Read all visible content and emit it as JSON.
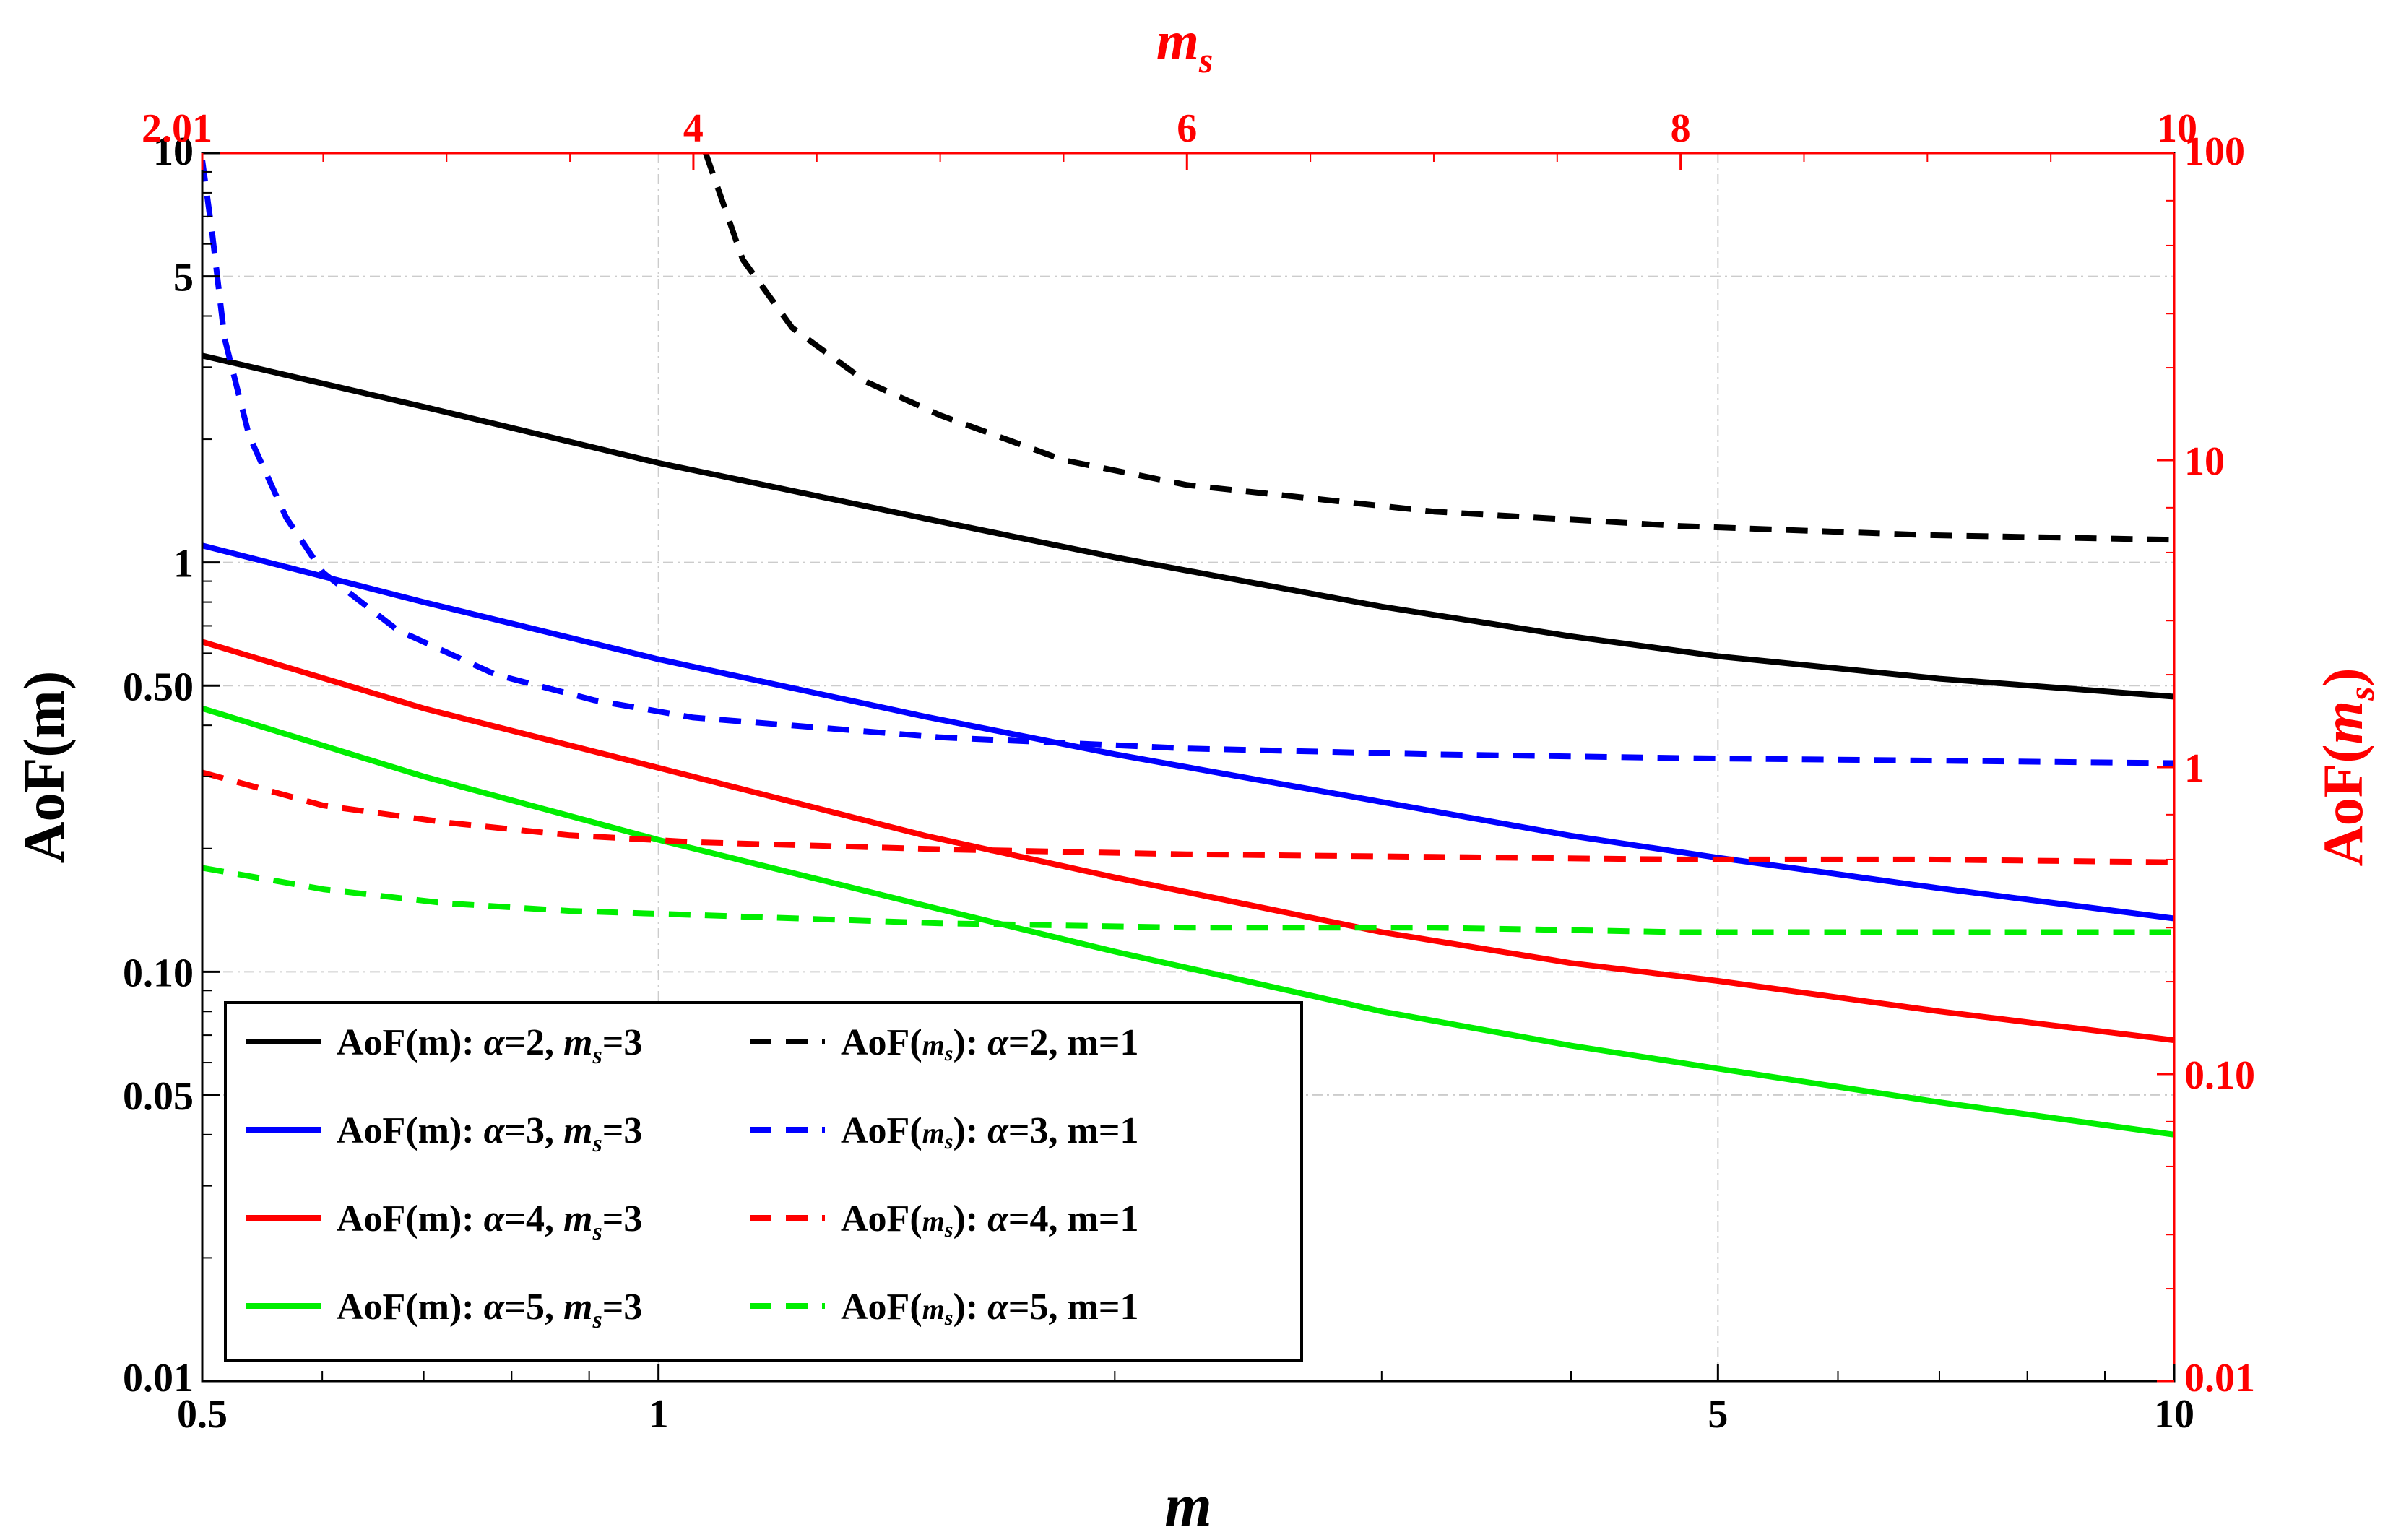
{
  "chart_data": {
    "type": "line",
    "colors": {
      "black": "#000000",
      "blue": "#0000ff",
      "red": "#ff0000",
      "green": "#00ee00",
      "grid": "#cccccc",
      "secondary_axis": "#ff0000"
    },
    "axes": {
      "bottom": {
        "title": "m",
        "scale": "log",
        "range": [
          0.5,
          10
        ],
        "ticks": [
          {
            "value": 0.5,
            "label": "0.5"
          },
          {
            "value": 1,
            "label": "1"
          },
          {
            "value": 5,
            "label": "5"
          },
          {
            "value": 10,
            "label": "10"
          }
        ]
      },
      "top": {
        "title": "m",
        "title_sub": "s",
        "scale": "linear",
        "range": [
          2.01,
          10
        ],
        "ticks": [
          {
            "value": 2.01,
            "label": "2.01"
          },
          {
            "value": 4,
            "label": "4"
          },
          {
            "value": 6,
            "label": "6"
          },
          {
            "value": 8,
            "label": "8"
          },
          {
            "value": 10,
            "label": "10"
          }
        ]
      },
      "left": {
        "title": "AoF(m)",
        "scale": "log",
        "range": [
          0.01,
          10
        ],
        "ticks": [
          {
            "value": 0.01,
            "label": "0.01"
          },
          {
            "value": 0.05,
            "label": "0.05"
          },
          {
            "value": 0.1,
            "label": "0.10"
          },
          {
            "value": 0.5,
            "label": "0.50"
          },
          {
            "value": 1,
            "label": "1"
          },
          {
            "value": 5,
            "label": "5"
          },
          {
            "value": 10,
            "label": "10"
          }
        ]
      },
      "right": {
        "title_prefix": "AoF(",
        "title_var": "m",
        "title_sub": "s",
        "title_suffix": ")",
        "scale": "log",
        "range": [
          0.01,
          100
        ],
        "ticks": [
          {
            "value": 0.01,
            "label": "0.01"
          },
          {
            "value": 0.1,
            "label": "0.10"
          },
          {
            "value": 1,
            "label": "1"
          },
          {
            "value": 10,
            "label": "10"
          },
          {
            "value": 100,
            "label": "100"
          }
        ]
      }
    },
    "series": [
      {
        "name": "AoF(m): α=2, m_s=3",
        "color": "black",
        "dash": false,
        "axes": "bottom-left",
        "x": [
          0.5,
          0.7,
          1,
          1.5,
          2,
          3,
          4,
          5,
          7,
          10
        ],
        "y": [
          3.2,
          2.4,
          1.75,
          1.28,
          1.03,
          0.78,
          0.66,
          0.59,
          0.52,
          0.47
        ]
      },
      {
        "name": "AoF(m): α=3, m_s=3",
        "color": "blue",
        "dash": false,
        "axes": "bottom-left",
        "x": [
          0.5,
          0.7,
          1,
          1.5,
          2,
          3,
          4,
          5,
          7,
          10
        ],
        "y": [
          1.1,
          0.8,
          0.58,
          0.42,
          0.34,
          0.26,
          0.215,
          0.19,
          0.16,
          0.135
        ]
      },
      {
        "name": "AoF(m): α=4, m_s=3",
        "color": "red",
        "dash": false,
        "axes": "bottom-left",
        "x": [
          0.5,
          0.7,
          1,
          1.5,
          2,
          3,
          4,
          5,
          7,
          10
        ],
        "y": [
          0.64,
          0.44,
          0.315,
          0.215,
          0.17,
          0.125,
          0.105,
          0.095,
          0.08,
          0.068
        ]
      },
      {
        "name": "AoF(m): α=5, m_s=3",
        "color": "green",
        "dash": false,
        "axes": "bottom-left",
        "x": [
          0.5,
          0.7,
          1,
          1.5,
          2,
          3,
          4,
          5,
          7,
          10
        ],
        "y": [
          0.44,
          0.3,
          0.21,
          0.145,
          0.112,
          0.08,
          0.066,
          0.058,
          0.048,
          0.04
        ]
      },
      {
        "name": "AoF(m_s): α=2, m=1",
        "color": "black",
        "dash": true,
        "axes": "top-right",
        "x": [
          4.05,
          4.2,
          4.4,
          4.7,
          5,
          5.5,
          6,
          7,
          8,
          9,
          10
        ],
        "y": [
          100,
          45,
          27,
          18,
          14,
          10,
          8.3,
          6.8,
          6.1,
          5.7,
          5.5
        ]
      },
      {
        "name": "AoF(m_s): α=3, m=1",
        "color": "blue",
        "dash": true,
        "axes": "top-right",
        "x": [
          2.01,
          2.05,
          2.1,
          2.2,
          2.35,
          2.5,
          2.8,
          3.2,
          3.6,
          4,
          5,
          6,
          7,
          8,
          9,
          10
        ],
        "y": [
          95,
          55,
          25,
          12,
          6.5,
          4.3,
          2.8,
          2.0,
          1.65,
          1.45,
          1.25,
          1.15,
          1.1,
          1.07,
          1.05,
          1.03
        ]
      },
      {
        "name": "AoF(m_s): α=4, m=1",
        "color": "red",
        "dash": true,
        "axes": "top-right",
        "x": [
          2.01,
          2.5,
          3,
          3.5,
          4,
          5,
          6,
          7,
          8,
          9,
          10
        ],
        "y": [
          0.96,
          0.75,
          0.66,
          0.6,
          0.57,
          0.54,
          0.52,
          0.51,
          0.5,
          0.5,
          0.49
        ]
      },
      {
        "name": "AoF(m_s): α=5, m=1",
        "color": "green",
        "dash": true,
        "axes": "top-right",
        "x": [
          2.01,
          2.5,
          3,
          3.5,
          4,
          5,
          6,
          7,
          8,
          9,
          10
        ],
        "y": [
          0.47,
          0.4,
          0.36,
          0.34,
          0.33,
          0.31,
          0.3,
          0.3,
          0.29,
          0.29,
          0.29
        ]
      }
    ],
    "legend": {
      "placement": "bottom-left",
      "entries": [
        [
          {
            "color": "black",
            "dash": false,
            "pre": "AoF(m): ",
            "greek": "α",
            "mid": "=2, ",
            "var": "m",
            "sub": "s",
            "post": "=3"
          },
          {
            "color": "black",
            "dash": true,
            "pre": "AoF(",
            "var": "m",
            "sub": "s",
            "mid": "): ",
            "greek": "α",
            "post": "=2, m=1"
          }
        ],
        [
          {
            "color": "blue",
            "dash": false,
            "pre": "AoF(m): ",
            "greek": "α",
            "mid": "=3, ",
            "var": "m",
            "sub": "s",
            "post": "=3"
          },
          {
            "color": "blue",
            "dash": true,
            "pre": "AoF(",
            "var": "m",
            "sub": "s",
            "mid": "): ",
            "greek": "α",
            "post": "=3, m=1"
          }
        ],
        [
          {
            "color": "red",
            "dash": false,
            "pre": "AoF(m): ",
            "greek": "α",
            "mid": "=4, ",
            "var": "m",
            "sub": "s",
            "post": "=3"
          },
          {
            "color": "red",
            "dash": true,
            "pre": "AoF(",
            "var": "m",
            "sub": "s",
            "mid": "): ",
            "greek": "α",
            "post": "=4, m=1"
          }
        ],
        [
          {
            "color": "green",
            "dash": false,
            "pre": "AoF(m): ",
            "greek": "α",
            "mid": "=5, ",
            "var": "m",
            "sub": "s",
            "post": "=3"
          },
          {
            "color": "green",
            "dash": true,
            "pre": "AoF(",
            "var": "m",
            "sub": "s",
            "mid": "): ",
            "greek": "α",
            "post": "=5, m=1"
          }
        ]
      ]
    }
  }
}
